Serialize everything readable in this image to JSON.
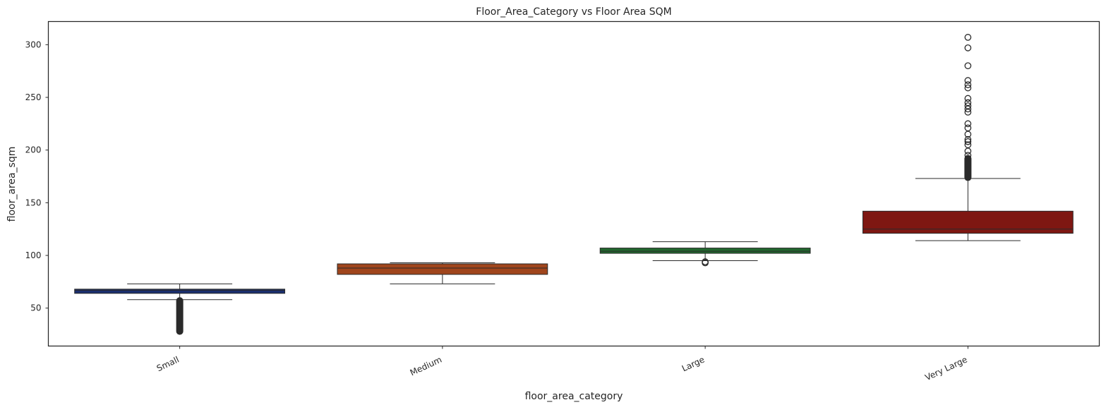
{
  "chart_data": {
    "type": "box",
    "title": "Floor_Area_Category vs Floor Area SQM",
    "xlabel": "floor_area_category",
    "ylabel": "floor_area_sqm",
    "ylim": [
      14,
      322
    ],
    "yticks": [
      50,
      100,
      150,
      200,
      250,
      300
    ],
    "grid": false,
    "categories": [
      "Small",
      "Medium",
      "Large",
      "Very Large"
    ],
    "boxes": [
      {
        "category": "Small",
        "color": "#1b2f6e",
        "whisker_low": 58,
        "q1": 64,
        "median": 67,
        "q3": 68,
        "whisker_high": 73,
        "outliers_dense": [
          28,
          57
        ],
        "outliers": []
      },
      {
        "category": "Medium",
        "color": "#a0451c",
        "whisker_low": 73,
        "q1": 82,
        "median": 88,
        "q3": 92,
        "whisker_high": 93,
        "outliers_dense": null,
        "outliers": []
      },
      {
        "category": "Large",
        "color": "#22672f",
        "whisker_low": 95,
        "q1": 102,
        "median": 104,
        "q3": 107,
        "whisker_high": 113,
        "outliers_dense": null,
        "outliers": [
          93,
          94
        ]
      },
      {
        "category": "Very Large",
        "color": "#7e1712",
        "whisker_low": 114,
        "q1": 121,
        "median": 125,
        "q3": 142,
        "whisker_high": 173,
        "outliers_dense": [
          174,
          192
        ],
        "outliers": [
          195,
          199,
          205,
          208,
          210,
          215,
          221,
          225,
          236,
          239,
          242,
          245,
          249,
          259,
          262,
          266,
          280,
          297,
          307
        ]
      }
    ]
  }
}
